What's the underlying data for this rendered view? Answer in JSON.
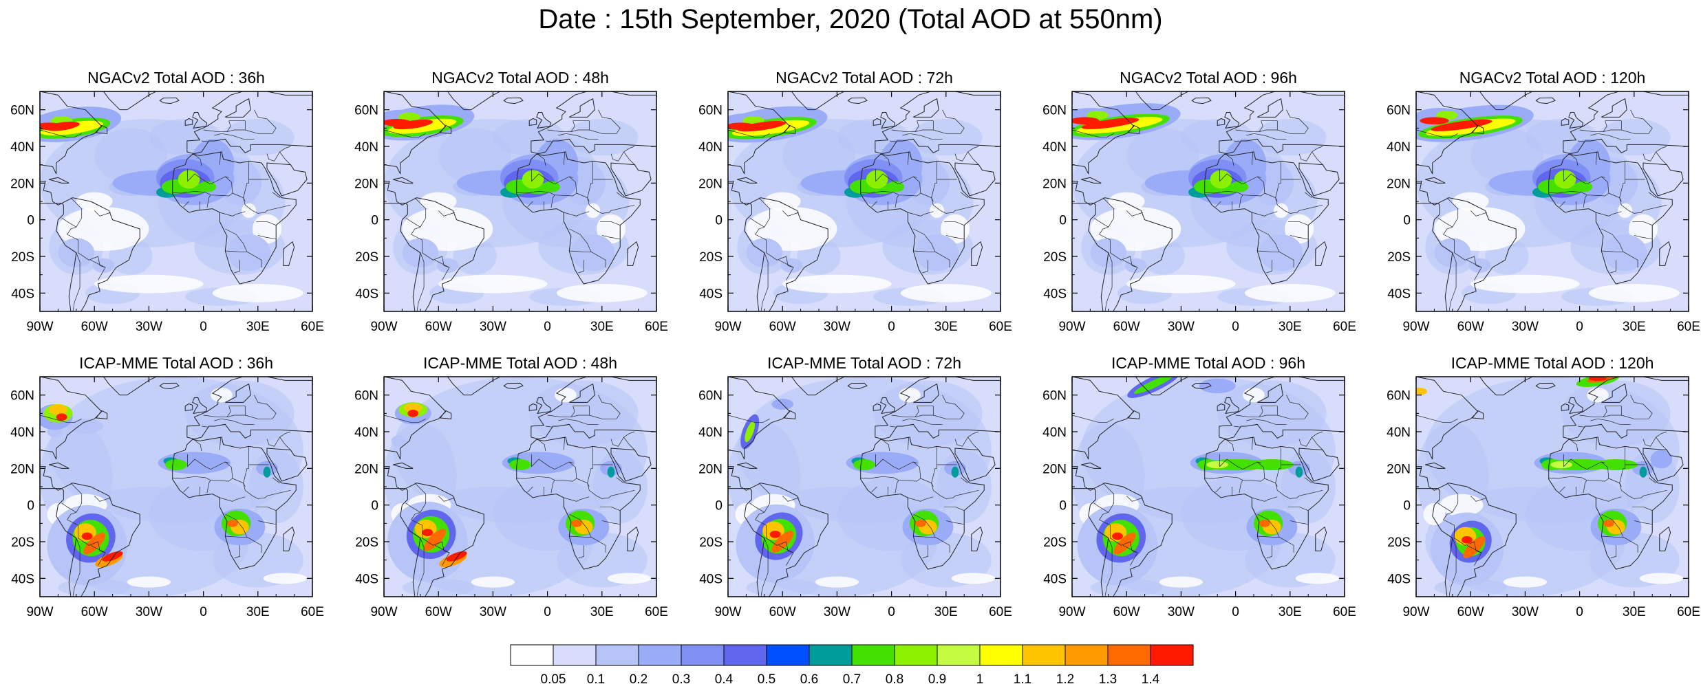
{
  "figure": {
    "title": "Date : 15th September, 2020 (Total AOD at 550nm)"
  },
  "map_extent": {
    "lon": [
      -90,
      60
    ],
    "lat": [
      -50,
      70
    ]
  },
  "lon_ticks": [
    "90W",
    "60W",
    "30W",
    "0",
    "30E",
    "60E"
  ],
  "lat_ticks": [
    "60N",
    "40N",
    "20N",
    "0",
    "20S",
    "40S"
  ],
  "panels": [
    {
      "title": "NGACv2 Total AOD : 36h",
      "model": "NGACv2",
      "lead": "36h",
      "smoke_lon": [
        -90,
        -55
      ],
      "smoke_lat": [
        45,
        55
      ]
    },
    {
      "title": "NGACv2 Total AOD : 48h",
      "model": "NGACv2",
      "lead": "48h",
      "smoke_lon": [
        -88,
        -50
      ],
      "smoke_lat": [
        45,
        57
      ]
    },
    {
      "title": "NGACv2 Total AOD : 72h",
      "model": "NGACv2",
      "lead": "72h",
      "smoke_lon": [
        -88,
        -45
      ],
      "smoke_lat": [
        45,
        55
      ]
    },
    {
      "title": "NGACv2 Total AOD : 96h",
      "model": "NGACv2",
      "lead": "96h",
      "smoke_lon": [
        -88,
        -40
      ],
      "smoke_lat": [
        45,
        58
      ]
    },
    {
      "title": "NGACv2 Total AOD : 120h",
      "model": "NGACv2",
      "lead": "120h",
      "smoke_lon": [
        -85,
        -35
      ],
      "smoke_lat": [
        43,
        58
      ]
    },
    {
      "title": "ICAP-MME Total AOD : 36h",
      "model": "ICAP-MME",
      "lead": "36h"
    },
    {
      "title": "ICAP-MME Total AOD : 48h",
      "model": "ICAP-MME",
      "lead": "48h"
    },
    {
      "title": "ICAP-MME Total AOD : 72h",
      "model": "ICAP-MME",
      "lead": "72h"
    },
    {
      "title": "ICAP-MME Total AOD : 96h",
      "model": "ICAP-MME",
      "lead": "96h"
    },
    {
      "title": "ICAP-MME Total AOD : 120h",
      "model": "ICAP-MME",
      "lead": "120h"
    }
  ],
  "colorbar": {
    "labels": [
      "0.05",
      "0.1",
      "0.2",
      "0.3",
      "0.4",
      "0.5",
      "0.6",
      "0.7",
      "0.8",
      "0.9",
      "1",
      "1.1",
      "1.2",
      "1.3",
      "1.4"
    ],
    "colors": [
      "#ffffff",
      "#d7ddfb",
      "#b7c4f8",
      "#9aabf7",
      "#7f8ff4",
      "#6066ee",
      "#0050ff",
      "#009b9b",
      "#44e000",
      "#8cf000",
      "#c4fa40",
      "#ffff00",
      "#ffc400",
      "#ff9a00",
      "#ff6a00",
      "#ff1a00"
    ]
  }
}
